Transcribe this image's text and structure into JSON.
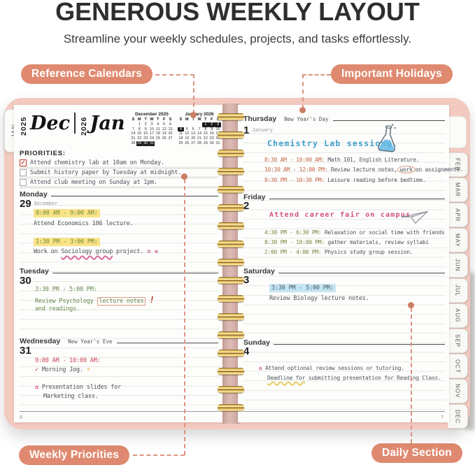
{
  "header": {
    "title": "GENEROUS WEEKLY LAYOUT",
    "subtitle": "Streamline your weekly schedules, projects, and tasks effortlessly."
  },
  "callouts": {
    "reference_calendars": "Reference Calendars",
    "important_holidays": "Important Holidays",
    "weekly_priorities": "Weekly Priorities",
    "daily_section": "Daily Section"
  },
  "colors": {
    "badge": "#df8a70",
    "cover_pink": "#f3cac0",
    "highlight_yellow": "#f9e387",
    "highlight_blue": "#c5e5f1",
    "ink_green": "#74883c",
    "ink_red": "#cc4455",
    "ink_orange": "#c96a4a",
    "ink_blue": "#3fa0cc",
    "ink_pink": "#d64f7d",
    "spiral_gold": "#d9b05e"
  },
  "left_page": {
    "tab": "JAN",
    "title_block": {
      "year_left": "2025",
      "month_left": "Dec",
      "year_right": "2026",
      "month_right": "Jan"
    },
    "calendars": [
      {
        "title": "December 2025",
        "dow": [
          "S",
          "M",
          "T",
          "W",
          "T",
          "F",
          "S"
        ],
        "weeks": [
          [
            "",
            "1",
            "2",
            "3",
            "4",
            "5",
            "6"
          ],
          [
            "7",
            "8",
            "9",
            "10",
            "11",
            "12",
            "13"
          ],
          [
            "14",
            "15",
            "16",
            "17",
            "18",
            "19",
            "20"
          ],
          [
            "21",
            "22",
            "23",
            "24",
            "25",
            "26",
            "27"
          ],
          [
            "28",
            "29",
            "30",
            "31",
            "",
            "",
            ""
          ]
        ],
        "highlighted": [
          "29",
          "30",
          "31"
        ]
      },
      {
        "title": "January 2026",
        "dow": [
          "S",
          "M",
          "T",
          "W",
          "T",
          "F",
          "S"
        ],
        "weeks": [
          [
            "",
            "",
            "",
            "",
            "1",
            "2",
            "3"
          ],
          [
            "4",
            "5",
            "6",
            "7",
            "8",
            "9",
            "10"
          ],
          [
            "11",
            "12",
            "13",
            "14",
            "15",
            "16",
            "17"
          ],
          [
            "18",
            "19",
            "20",
            "21",
            "22",
            "23",
            "24"
          ],
          [
            "25",
            "26",
            "27",
            "28",
            "29",
            "30",
            "31"
          ]
        ],
        "highlighted": [
          "1",
          "2",
          "3",
          "4"
        ]
      }
    ],
    "priorities": {
      "label": "PRIORITIES:",
      "items": [
        {
          "checked": true,
          "check_glyph": "✓",
          "text": "Attend chemistry lab at 10am on Monday."
        },
        {
          "checked": false,
          "check_glyph": "",
          "text": "Submit history paper by Tuesday at midnight."
        },
        {
          "checked": false,
          "check_glyph": "",
          "text": "Attend club meeting on Sunday at 1pm."
        }
      ]
    },
    "monday": {
      "name": "Monday",
      "date": "29",
      "month": "December",
      "time1": "8:00 AM - 9:00 AM:",
      "note1": "Attend Economics 106 lecture.",
      "time2": "1:30 PM - 3:00 PM:",
      "note2_lead": "Work on ",
      "note2_squiggle": "Sociology group",
      "note2_rest": " project.",
      "doodles": "✿ ❀"
    },
    "tuesday": {
      "name": "Tuesday",
      "date": "30",
      "time1": "3:30 PM - 5:00 PM:",
      "note1_lead": "Review Psychology ",
      "note1_boxed": "lecture notes",
      "exclaim": "!",
      "note2": "and readings."
    },
    "wednesday": {
      "name": "Wednesday",
      "date": "31",
      "holiday": "New Year's Eve",
      "time1": "9:00 AM - 10:00 AM:",
      "check": "✓",
      "note1": "Morning Jog.",
      "sun": "☀",
      "flower": "✿",
      "note2_line1": "Presentation slides for",
      "note2_line2": "Marketing class."
    },
    "page_number": "6"
  },
  "right_page": {
    "thursday": {
      "name": "Thursday",
      "holiday": "New Year's Day",
      "date": "1",
      "month": "January",
      "headline": "Chemistry Lab sessiong.",
      "time1": "8:30 AM - 10:00 AM:",
      "note1": "Math 101, English Literature.",
      "time2": "10:30 AM - 12:00 PM:",
      "note2_lead": "Review lecture notes,",
      "note2_circled": "work",
      "note2_rest": "on assignments.",
      "time3": "9:30 PM - 10:30 PM:",
      "note3": "Leisure reading before bedtime."
    },
    "friday": {
      "name": "Friday",
      "date": "2",
      "headline": "Attend career fair on campus.",
      "time1": "4:30 PM - 6:30 PM:",
      "note1": "Relaxation or social time with friends",
      "time2": "8:30 PM - 10:00 PM:",
      "note2": "gather materials, review syllabi",
      "time3": "2:00 PM - 4:00 PM:",
      "note3": "Physics study group session."
    },
    "saturday": {
      "name": "Saturday",
      "date": "3",
      "time1": "3:30 PM - 5:00 PM:",
      "note1": "Review Biology lecture notes."
    },
    "sunday": {
      "name": "Sunday",
      "date": "4",
      "flower": "✿",
      "note1": "Attend optional review sessions or tutoring.",
      "note2_underlined": "Deadline for",
      "note2_rest": " submitting presentation for Reading Class."
    },
    "page_number": "7",
    "tabs": [
      "FEB",
      "MAR",
      "APR",
      "MAY",
      "JUN",
      "JUL",
      "AUG",
      "SEP",
      "OCT",
      "NOV",
      "DEC"
    ]
  }
}
